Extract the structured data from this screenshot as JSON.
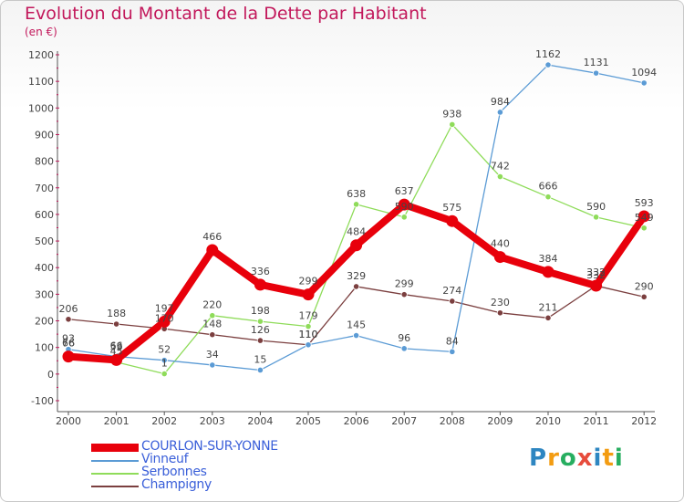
{
  "title": "Evolution du Montant de la Dette par Habitant",
  "unit_label": "(en €)",
  "logo": {
    "letters": [
      "P",
      "r",
      "o",
      "x",
      "i",
      "t",
      "i"
    ],
    "colors": [
      "#2e86c1",
      "#f39c12",
      "#27ae60",
      "#e74c3c",
      "#2e86c1",
      "#f39c12",
      "#27ae60"
    ]
  },
  "chart_data": {
    "type": "line",
    "x": [
      "2000",
      "2001",
      "2002",
      "2003",
      "2004",
      "2005",
      "2006",
      "2007",
      "2008",
      "2009",
      "2010",
      "2011",
      "2012"
    ],
    "ylim": [
      -100,
      1200
    ],
    "yticks": [
      "-100",
      "0",
      "100",
      "200",
      "300",
      "400",
      "500",
      "600",
      "700",
      "800",
      "900",
      "1000",
      "1100",
      "1200"
    ],
    "grid": false,
    "legend_placement": "bottom-left",
    "series": [
      {
        "name": "COURLON-SUR-YONNE",
        "color": "#e8000b",
        "values": [
          66,
          53,
          197,
          466,
          336,
          299,
          484,
          637,
          575,
          440,
          384,
          332,
          593
        ],
        "labels": [
          "66",
          "53",
          "197",
          "466",
          "336",
          "299",
          "484",
          "637",
          "575",
          "440",
          "384",
          "332",
          "593"
        ]
      },
      {
        "name": "Vinneuf",
        "color": "#5b9bd5",
        "values": [
          93,
          66,
          52,
          34,
          15,
          110,
          145,
          96,
          84,
          984,
          1162,
          1131,
          1094
        ],
        "labels": [
          "93",
          "66",
          "52",
          "34",
          "15",
          "110",
          "145",
          "96",
          "84",
          "984",
          "1162",
          "1131",
          "1094"
        ]
      },
      {
        "name": "Serbonnes",
        "color": "#8fdc5a",
        "values": [
          76,
          45,
          1,
          220,
          198,
          179,
          638,
          590,
          938,
          742,
          666,
          590,
          549
        ],
        "labels": [
          "76",
          "45",
          "1",
          "220",
          "198",
          "179",
          "638",
          "590",
          "938",
          "742",
          "666",
          "590",
          "549"
        ]
      },
      {
        "name": "Champigny",
        "color": "#7b3f3f",
        "values": [
          206,
          188,
          170,
          148,
          126,
          110,
          329,
          299,
          274,
          230,
          211,
          332,
          290
        ],
        "labels": [
          "206",
          "188",
          "170",
          "148",
          "126",
          "110",
          "329",
          "299",
          "274",
          "230",
          "211",
          "332",
          "290"
        ]
      }
    ]
  }
}
